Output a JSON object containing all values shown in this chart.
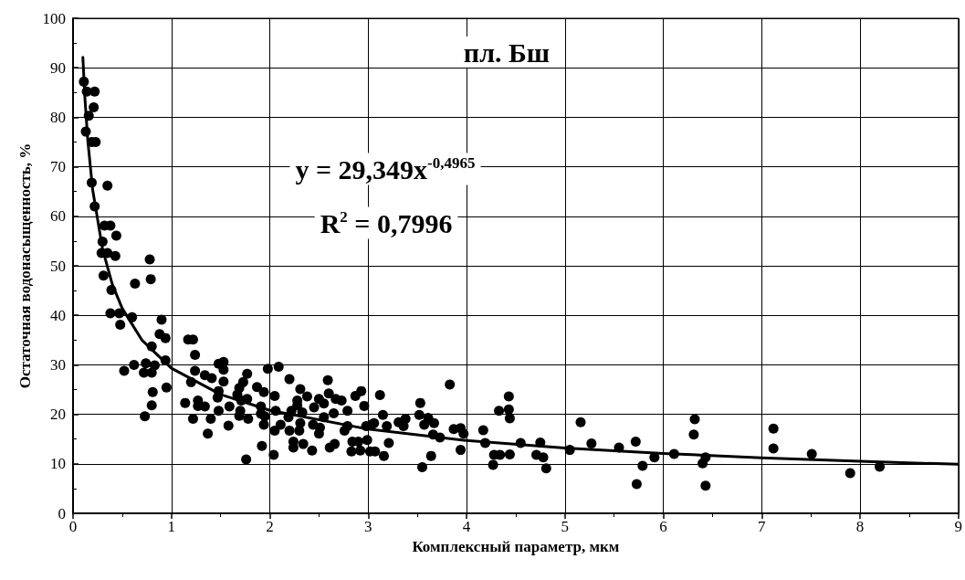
{
  "chart_data": {
    "type": "scatter",
    "xlabel": "Комплексный параметр, мкм",
    "ylabel": "Остаточная водонасыщенность, %",
    "annotations": [
      "пл. Бш",
      "y = 29,349x$^{-0,4965}$",
      "R$^{2}$ = 0,7996"
    ],
    "xlim": [
      0,
      9
    ],
    "xticks": [
      0,
      1,
      2,
      3,
      4,
      5,
      6,
      7,
      8,
      9
    ],
    "ylim": [
      0,
      100
    ],
    "yticks": [
      0,
      10,
      20,
      30,
      40,
      50,
      60,
      70,
      80,
      90,
      100
    ],
    "grid": true,
    "marker": "circle",
    "series": [
      {
        "color": "#000000",
        "x": [
          0.11,
          0.14,
          0.22,
          0.21,
          0.16,
          0.13,
          0.23,
          0.19,
          0.35,
          0.19,
          0.22,
          0.32,
          0.38,
          0.44,
          0.3,
          0.29,
          0.35,
          0.43,
          0.78,
          0.31,
          0.79,
          0.63,
          0.39,
          0.38,
          0.47,
          0.48,
          0.6,
          0.9,
          0.88,
          0.94,
          0.8,
          0.94,
          0.62,
          0.74,
          0.83,
          0.52,
          0.72,
          0.8,
          0.81,
          0.95,
          0.8,
          1.14,
          1.24,
          1.17,
          1.22,
          1.24,
          1.2,
          1.34,
          1.41,
          1.48,
          1.53,
          1.53,
          1.53,
          1.77,
          1.73,
          0.73,
          1.27,
          1.27,
          1.34,
          1.22,
          1.4,
          1.37,
          1.48,
          1.47,
          1.48,
          1.59,
          1.58,
          1.69,
          1.67,
          1.71,
          1.77,
          1.7,
          1.69,
          1.78,
          1.76,
          1.87,
          1.94,
          1.98,
          2.09,
          1.91,
          1.91,
          1.95,
          1.94,
          2.05,
          2.06,
          2.05,
          1.92,
          2.04,
          2.11,
          2.2,
          2.31,
          2.28,
          2.28,
          2.22,
          2.19,
          2.33,
          2.31,
          2.2,
          2.3,
          2.24,
          2.24,
          2.34,
          2.43,
          2.38,
          2.45,
          2.5,
          2.55,
          2.59,
          2.6,
          2.67,
          2.73,
          2.65,
          2.55,
          2.44,
          2.51,
          2.5,
          2.79,
          2.79,
          2.76,
          2.87,
          2.93,
          2.96,
          2.98,
          3.04,
          2.61,
          2.66,
          2.84,
          2.9,
          2.83,
          2.92,
          2.99,
          3.02,
          3.12,
          3.15,
          3.06,
          3.19,
          3.21,
          3.07,
          3.16,
          3.31,
          3.38,
          3.36,
          3.53,
          3.52,
          3.61,
          3.57,
          3.67,
          3.66,
          3.73,
          3.64,
          3.55,
          3.83,
          3.87,
          3.94,
          3.97,
          3.94,
          4.17,
          4.19,
          4.28,
          4.34,
          4.27,
          4.44,
          4.33,
          4.43,
          4.43,
          4.44,
          4.55,
          4.71,
          4.75,
          4.78,
          4.81,
          5.05,
          5.16,
          5.27,
          5.55,
          5.72,
          5.79,
          5.73,
          5.91,
          6.11,
          6.32,
          6.31,
          6.43,
          6.4,
          6.43,
          7.12,
          7.12,
          7.51,
          7.9,
          8.2
        ],
        "values": [
          87.2,
          85.2,
          85.2,
          82,
          80.3,
          77.1,
          75,
          66.8,
          66.2,
          75,
          62,
          58.1,
          58.1,
          56.1,
          54.9,
          52.6,
          52.6,
          52,
          51.3,
          48,
          47.3,
          46.4,
          45.1,
          40.4,
          40.4,
          38.1,
          39.6,
          39.1,
          36.2,
          35.4,
          33.7,
          30.9,
          30,
          30.3,
          29.9,
          28.8,
          28.4,
          28.4,
          24.5,
          25.4,
          21.8,
          22.3,
          32,
          35.1,
          35.1,
          28.8,
          26.5,
          27.9,
          27.3,
          30.2,
          30.6,
          29,
          26.6,
          28.2,
          26.5,
          19.6,
          22.8,
          21.7,
          21.6,
          19.1,
          19.1,
          16.1,
          24.7,
          23.4,
          20.7,
          21.6,
          17.7,
          25.3,
          24,
          22.8,
          23.1,
          20.7,
          19.7,
          19.1,
          10.9,
          25.5,
          24.5,
          29.2,
          29.6,
          21.6,
          20.1,
          19.6,
          17.9,
          23.7,
          20.7,
          16.7,
          13.6,
          11.8,
          17.9,
          27.1,
          25.1,
          22.8,
          21.8,
          20.7,
          19.4,
          20.4,
          18.2,
          16.7,
          16.7,
          14.5,
          13.3,
          14,
          12.7,
          23.6,
          21.4,
          23.1,
          22.2,
          26.9,
          24.2,
          23.1,
          22.8,
          20.2,
          19.4,
          17.9,
          17.3,
          16.1,
          20.7,
          17.6,
          16.7,
          23.7,
          24.7,
          21.7,
          17.6,
          18,
          13.3,
          14,
          14.5,
          14.5,
          12.5,
          12.7,
          14.8,
          12.5,
          23.9,
          19.9,
          18.2,
          17.6,
          14.2,
          12.5,
          11.6,
          18.4,
          19.1,
          17.6,
          22.3,
          19.9,
          19.3,
          17.9,
          18.2,
          15.9,
          15.3,
          11.6,
          9.3,
          26,
          17,
          17.2,
          16.1,
          12.8,
          16.8,
          14.2,
          11.8,
          11.8,
          9.8,
          11.9,
          20.7,
          23.6,
          21,
          19.2,
          14.2,
          11.8,
          14.3,
          11.3,
          9.1,
          12.8,
          18.4,
          14.1,
          13.3,
          14.5,
          9.6,
          5.9,
          11.3,
          12,
          19,
          15.9,
          11.3,
          10.1,
          5.6,
          17.1,
          13.1,
          12,
          8.1,
          9.4
        ]
      },
      {
        "type": "line",
        "color": "#000000",
        "marker": "none",
        "line_style": "solid",
        "x": [
          0.1,
          0.12,
          0.15,
          0.2,
          0.3,
          0.4,
          0.5,
          0.7,
          1,
          1.5,
          2,
          3,
          4,
          5,
          6,
          7,
          8,
          9
        ],
        "values": [
          92.1,
          84.1,
          75.3,
          65.3,
          53.4,
          46.2,
          41.4,
          35.0,
          29.3,
          24.0,
          20.8,
          17.0,
          14.7,
          13.2,
          12.1,
          11.2,
          10.5,
          9.9
        ]
      }
    ]
  }
}
